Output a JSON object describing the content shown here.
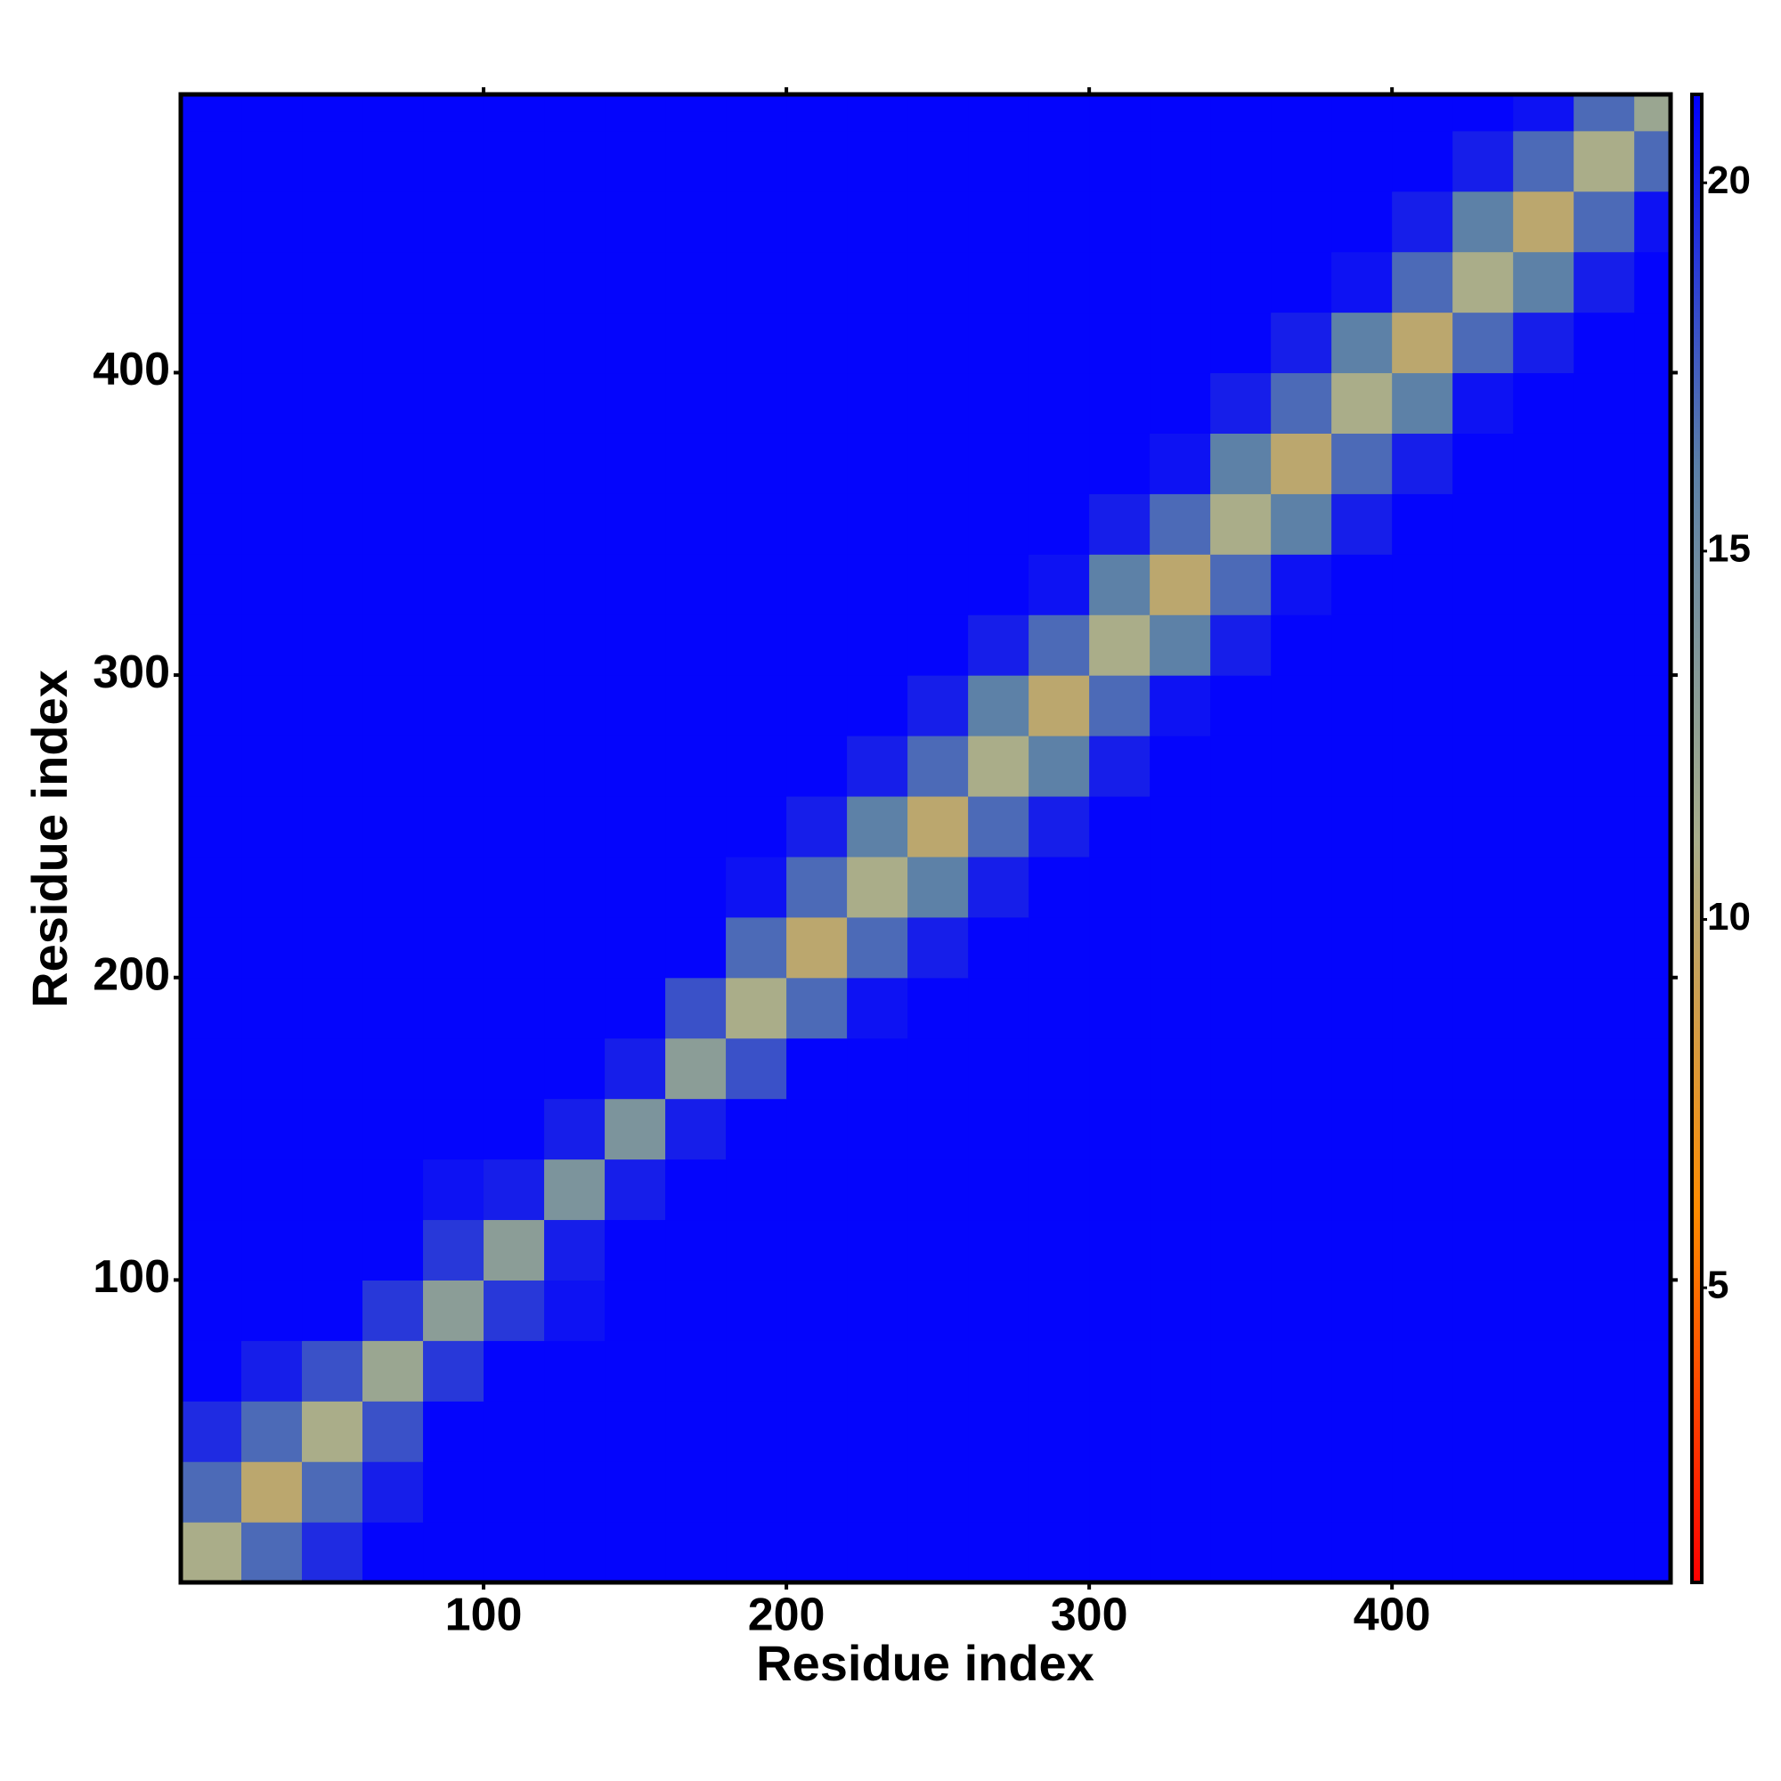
{
  "chart_data": {
    "type": "heatmap",
    "xlabel": "Residue index",
    "ylabel": "Residue index",
    "xbins": [
      0,
      20,
      40,
      60,
      80,
      100,
      120,
      140,
      160,
      180,
      200,
      220,
      240,
      260,
      280,
      300,
      320,
      340,
      360,
      380,
      400,
      420,
      440,
      460,
      480,
      492
    ],
    "ybins": [
      0,
      20,
      40,
      60,
      80,
      100,
      120,
      140,
      160,
      180,
      200,
      220,
      240,
      260,
      280,
      300,
      320,
      340,
      360,
      380,
      400,
      420,
      440,
      460,
      480,
      492
    ],
    "values": [
      [
        11,
        17,
        19.5,
        21,
        21,
        21,
        21,
        21,
        21,
        21,
        21,
        21,
        21,
        21,
        21,
        21,
        21,
        21,
        21,
        21,
        21,
        21,
        21,
        21,
        21
      ],
      [
        17,
        10,
        17,
        20,
        21,
        21,
        21,
        21,
        21,
        21,
        21,
        21,
        21,
        21,
        21,
        21,
        21,
        21,
        21,
        21,
        21,
        21,
        21,
        21,
        21
      ],
      [
        19.5,
        17,
        11,
        18,
        21,
        21,
        21,
        21,
        21,
        21,
        21,
        21,
        21,
        21,
        21,
        21,
        21,
        21,
        21,
        21,
        21,
        21,
        21,
        21,
        21
      ],
      [
        21,
        20,
        18,
        12,
        19,
        21,
        21,
        21,
        21,
        21,
        21,
        21,
        21,
        21,
        21,
        21,
        21,
        21,
        21,
        21,
        21,
        21,
        21,
        21,
        21
      ],
      [
        21,
        21,
        21,
        19,
        13,
        19,
        20.5,
        21,
        21,
        21,
        21,
        21,
        21,
        21,
        21,
        21,
        21,
        21,
        21,
        21,
        21,
        21,
        21,
        21,
        21
      ],
      [
        21,
        21,
        21,
        21,
        19,
        13,
        20,
        21,
        21,
        21,
        21,
        21,
        21,
        21,
        21,
        21,
        21,
        21,
        21,
        21,
        21,
        21,
        21,
        21,
        21
      ],
      [
        21,
        21,
        21,
        21,
        20.5,
        20,
        14,
        20,
        21,
        21,
        21,
        21,
        21,
        21,
        21,
        21,
        21,
        21,
        21,
        21,
        21,
        21,
        21,
        21,
        21
      ],
      [
        21,
        21,
        21,
        21,
        21,
        21,
        20,
        14,
        20,
        21,
        21,
        21,
        21,
        21,
        21,
        21,
        21,
        21,
        21,
        21,
        21,
        21,
        21,
        21,
        21
      ],
      [
        21,
        21,
        21,
        21,
        21,
        21,
        21,
        20,
        13,
        18,
        21,
        21,
        21,
        21,
        21,
        21,
        21,
        21,
        21,
        21,
        21,
        21,
        21,
        21,
        21
      ],
      [
        21,
        21,
        21,
        21,
        21,
        21,
        21,
        21,
        18,
        11,
        17,
        20.5,
        21,
        21,
        21,
        21,
        21,
        21,
        21,
        21,
        21,
        21,
        21,
        21,
        21
      ],
      [
        21,
        21,
        21,
        21,
        21,
        21,
        21,
        21,
        21,
        17,
        10,
        17,
        20,
        21,
        21,
        21,
        21,
        21,
        21,
        21,
        21,
        21,
        21,
        21,
        21
      ],
      [
        21,
        21,
        21,
        21,
        21,
        21,
        21,
        21,
        21,
        20.5,
        17,
        11,
        16,
        20,
        21,
        21,
        21,
        21,
        21,
        21,
        21,
        21,
        21,
        21,
        21
      ],
      [
        21,
        21,
        21,
        21,
        21,
        21,
        21,
        21,
        21,
        21,
        20,
        16,
        10,
        17,
        20,
        21,
        21,
        21,
        21,
        21,
        21,
        21,
        21,
        21,
        21
      ],
      [
        21,
        21,
        21,
        21,
        21,
        21,
        21,
        21,
        21,
        21,
        21,
        20,
        17,
        11,
        16,
        20,
        21,
        21,
        21,
        21,
        21,
        21,
        21,
        21,
        21
      ],
      [
        21,
        21,
        21,
        21,
        21,
        21,
        21,
        21,
        21,
        21,
        21,
        21,
        20,
        16,
        10,
        17,
        20.5,
        21,
        21,
        21,
        21,
        21,
        21,
        21,
        21
      ],
      [
        21,
        21,
        21,
        21,
        21,
        21,
        21,
        21,
        21,
        21,
        21,
        21,
        21,
        20,
        17,
        11,
        16,
        20,
        21,
        21,
        21,
        21,
        21,
        21,
        21
      ],
      [
        21,
        21,
        21,
        21,
        21,
        21,
        21,
        21,
        21,
        21,
        21,
        21,
        21,
        21,
        20.5,
        16,
        10,
        17,
        20.5,
        21,
        21,
        21,
        21,
        21,
        21
      ],
      [
        21,
        21,
        21,
        21,
        21,
        21,
        21,
        21,
        21,
        21,
        21,
        21,
        21,
        21,
        21,
        20,
        17,
        11,
        16,
        20,
        21,
        21,
        21,
        21,
        21
      ],
      [
        21,
        21,
        21,
        21,
        21,
        21,
        21,
        21,
        21,
        21,
        21,
        21,
        21,
        21,
        21,
        21,
        20.5,
        16,
        10,
        17,
        20,
        21,
        21,
        21,
        21
      ],
      [
        21,
        21,
        21,
        21,
        21,
        21,
        21,
        21,
        21,
        21,
        21,
        21,
        21,
        21,
        21,
        21,
        21,
        20,
        17,
        11,
        16,
        20.5,
        21,
        21,
        21
      ],
      [
        21,
        21,
        21,
        21,
        21,
        21,
        21,
        21,
        21,
        21,
        21,
        21,
        21,
        21,
        21,
        21,
        21,
        21,
        20,
        16,
        10,
        17,
        20,
        21,
        21
      ],
      [
        21,
        21,
        21,
        21,
        21,
        21,
        21,
        21,
        21,
        21,
        21,
        21,
        21,
        21,
        21,
        21,
        21,
        21,
        21,
        20.5,
        17,
        11,
        16,
        20,
        21
      ],
      [
        21,
        21,
        21,
        21,
        21,
        21,
        21,
        21,
        21,
        21,
        21,
        21,
        21,
        21,
        21,
        21,
        21,
        21,
        21,
        21,
        20,
        16,
        10,
        17,
        20.5
      ],
      [
        21,
        21,
        21,
        21,
        21,
        21,
        21,
        21,
        21,
        21,
        21,
        21,
        21,
        21,
        21,
        21,
        21,
        21,
        21,
        21,
        21,
        20,
        17,
        11,
        17
      ],
      [
        21,
        21,
        21,
        21,
        21,
        21,
        21,
        21,
        21,
        21,
        21,
        21,
        21,
        21,
        21,
        21,
        21,
        21,
        21,
        21,
        21,
        21,
        20.5,
        17,
        12
      ]
    ],
    "colors": [
      "#ff0000",
      "#ff8c00",
      "#a8ae8c",
      "#5b80a8",
      "#0000ff"
    ],
    "clim": [
      1,
      21.2
    ],
    "cticks": [
      5,
      10,
      15,
      20
    ],
    "xlim": [
      0,
      492
    ],
    "ylim": [
      0,
      492
    ],
    "xticks": [
      100,
      200,
      300,
      400
    ],
    "yticks": [
      100,
      200,
      300,
      400
    ]
  }
}
